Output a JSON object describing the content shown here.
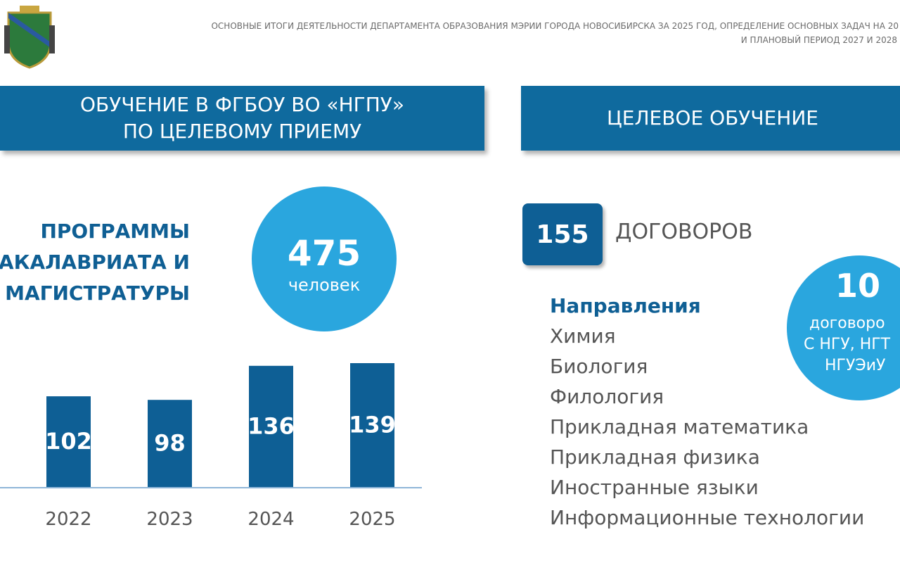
{
  "header": {
    "line1": "ОСНОВНЫЕ ИТОГИ ДЕЯТЕЛЬНОСТИ ДЕПАРТАМЕНТА ОБРАЗОВАНИЯ МЭРИИ ГОРОДА НОВОСИБИРСКА  ЗА 2025 ГОД, ОПРЕДЕЛЕНИЕ ОСНОВНЫХ ЗАДАЧ НА 20",
    "line2": "И ПЛАНОВЫЙ ПЕРИОД 2027 И 2028"
  },
  "left": {
    "banner": [
      "ОБУЧЕНИЕ В ФГБОУ ВО «НГПУ»",
      "ПО ЦЕЛЕВОМУ ПРИЕМУ"
    ],
    "heading": [
      "ПРОГРАММЫ",
      "БАКАЛАВРИАТА И",
      "МАГИСТРАТУРЫ"
    ],
    "circle": {
      "number": 475,
      "label": "человек"
    }
  },
  "chart_data": {
    "type": "bar",
    "categories": [
      "2022",
      "2023",
      "2024",
      "2025"
    ],
    "values": [
      102,
      98,
      136,
      139
    ],
    "color": "#0e5f95",
    "ylim": [
      0,
      150
    ]
  },
  "right": {
    "banner": "ЦЕЛЕВОЕ ОБУЧЕНИЕ",
    "box": {
      "number": 155,
      "label": "ДОГОВОРОВ"
    },
    "directions_title": "Направления",
    "directions": [
      "Химия",
      "Биология",
      "Филология",
      "Прикладная математика",
      "Прикладная физика",
      "Иностранные языки",
      "Информационные технологии"
    ],
    "circle": {
      "number": 10,
      "lines": [
        "договоро",
        "С НГУ, НГТ",
        "НГУЭиУ"
      ]
    }
  }
}
